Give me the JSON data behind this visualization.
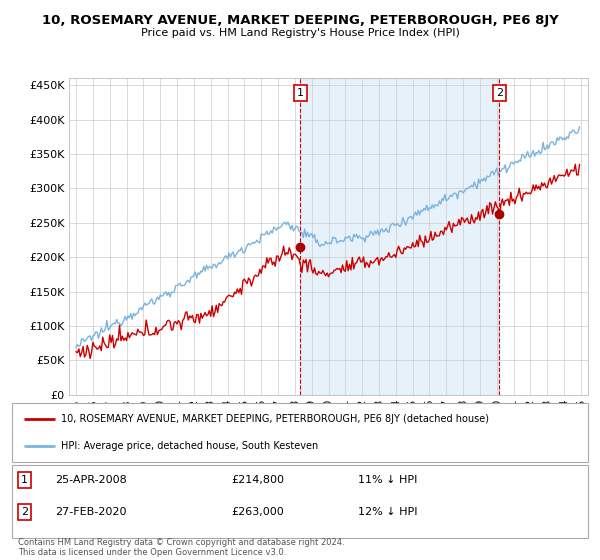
{
  "title": "10, ROSEMARY AVENUE, MARKET DEEPING, PETERBOROUGH, PE6 8JY",
  "subtitle": "Price paid vs. HM Land Registry's House Price Index (HPI)",
  "hpi_color": "#7ab4e0",
  "hpi_fill_color": "#d6e8f5",
  "price_color": "#cc0000",
  "marker_color": "#aa0000",
  "vline_color": "#cc0000",
  "background_color": "#ffffff",
  "grid_color": "#cccccc",
  "ylim": [
    0,
    460000
  ],
  "yticks": [
    0,
    50000,
    100000,
    150000,
    200000,
    250000,
    300000,
    350000,
    400000,
    450000
  ],
  "ytick_labels": [
    "£0",
    "£50K",
    "£100K",
    "£150K",
    "£200K",
    "£250K",
    "£300K",
    "£350K",
    "£400K",
    "£450K"
  ],
  "sale1_year": 2008.32,
  "sale1_price": 214800,
  "sale1_label": "1",
  "sale2_year": 2020.16,
  "sale2_price": 263000,
  "sale2_label": "2",
  "legend_line1": "10, ROSEMARY AVENUE, MARKET DEEPING, PETERBOROUGH, PE6 8JY (detached house)",
  "legend_line2": "HPI: Average price, detached house, South Kesteven",
  "ann1_date": "25-APR-2008",
  "ann1_price": "£214,800",
  "ann1_pct": "11% ↓ HPI",
  "ann2_date": "27-FEB-2020",
  "ann2_price": "£263,000",
  "ann2_pct": "12% ↓ HPI",
  "footer": "Contains HM Land Registry data © Crown copyright and database right 2024.\nThis data is licensed under the Open Government Licence v3.0.",
  "fontfamily": "DejaVu Sans"
}
